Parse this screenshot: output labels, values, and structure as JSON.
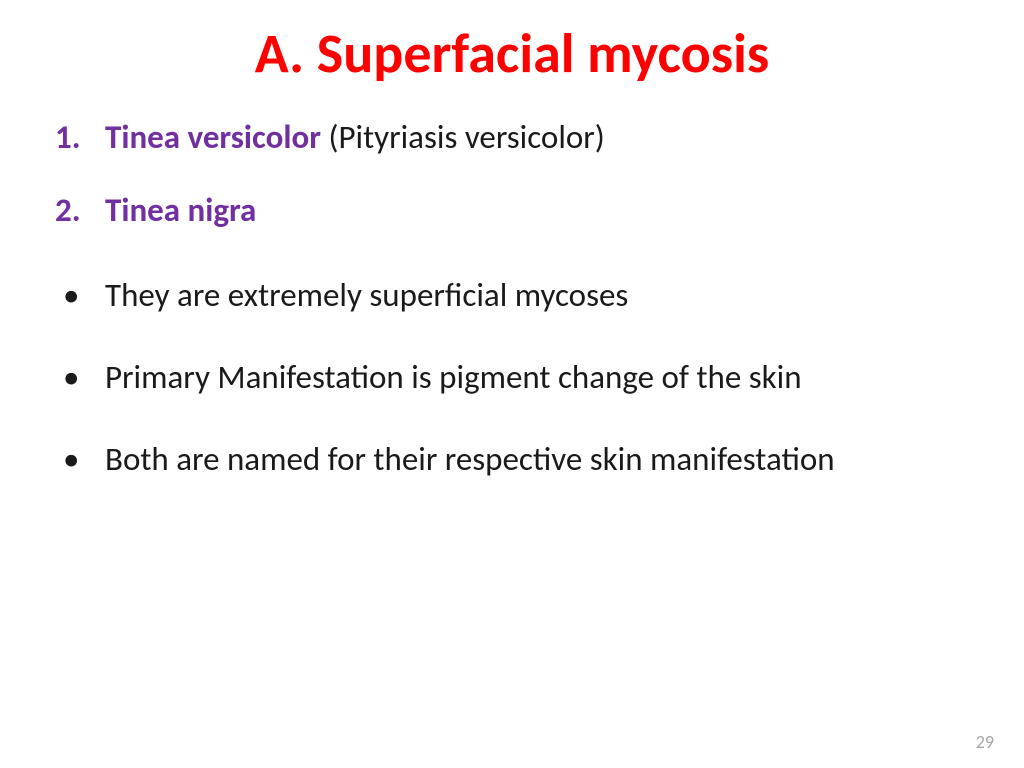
{
  "title": {
    "text": "A. Superfacial mycosis",
    "color": "#ff0000",
    "fontsize": 56
  },
  "numbered": [
    {
      "highlight": "Tinea versicolor ",
      "rest": "(Pityriasis versicolor)",
      "highlight_color": "#7030a0",
      "rest_color": "#1a1a1a"
    },
    {
      "highlight": "Tinea nigra",
      "rest": "",
      "highlight_color": "#7030a0",
      "rest_color": "#1a1a1a"
    }
  ],
  "numbered_marker_color": "#7030a0",
  "bullets": [
    "They are extremely superficial mycoses",
    "Primary Manifestation is pigment change of the skin",
    "Both are named for their respective skin manifestation"
  ],
  "body_color": "#1a1a1a",
  "body_fontsize": 33,
  "page_number": "29",
  "page_number_color": "#a6a6a6",
  "page_number_fontsize": 18
}
